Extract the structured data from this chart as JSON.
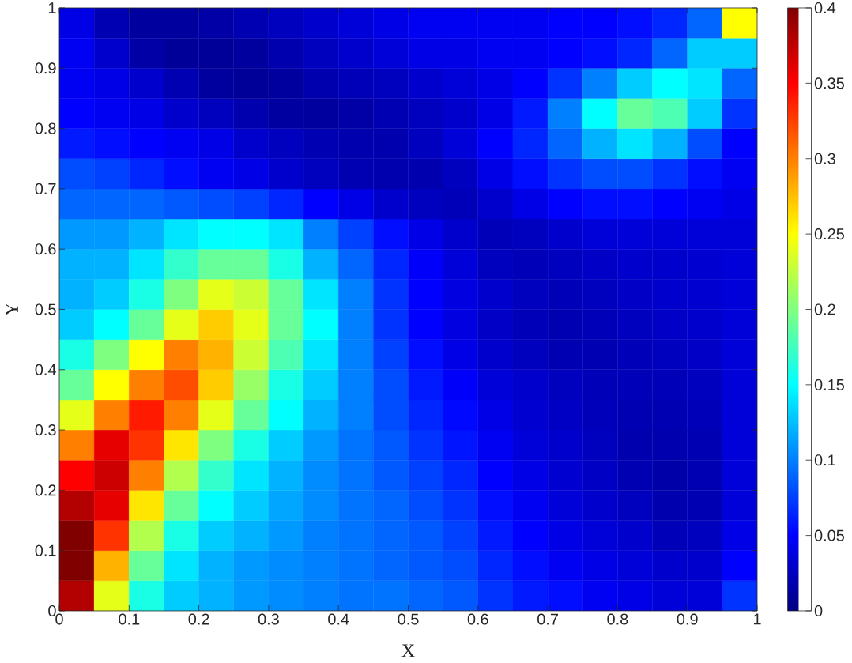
{
  "chart_data": {
    "type": "heatmap",
    "xlabel": "X",
    "ylabel": "Y",
    "cells": [
      [
        0.04,
        0.02,
        0.012,
        0.012,
        0.015,
        0.02,
        0.025,
        0.03,
        0.035,
        0.04,
        0.045,
        0.045,
        0.045,
        0.045,
        0.05,
        0.05,
        0.055,
        0.065,
        0.09,
        0.25
      ],
      [
        0.045,
        0.03,
        0.015,
        0.01,
        0.01,
        0.012,
        0.018,
        0.025,
        0.03,
        0.035,
        0.04,
        0.04,
        0.045,
        0.045,
        0.05,
        0.055,
        0.065,
        0.09,
        0.13,
        0.13
      ],
      [
        0.045,
        0.04,
        0.03,
        0.02,
        0.012,
        0.01,
        0.012,
        0.018,
        0.022,
        0.025,
        0.03,
        0.035,
        0.04,
        0.05,
        0.07,
        0.1,
        0.13,
        0.15,
        0.14,
        0.09
      ],
      [
        0.05,
        0.045,
        0.04,
        0.03,
        0.025,
        0.018,
        0.013,
        0.012,
        0.015,
        0.02,
        0.025,
        0.03,
        0.04,
        0.06,
        0.1,
        0.15,
        0.19,
        0.18,
        0.13,
        0.07
      ],
      [
        0.06,
        0.055,
        0.05,
        0.045,
        0.04,
        0.03,
        0.025,
        0.02,
        0.018,
        0.018,
        0.025,
        0.035,
        0.05,
        0.065,
        0.09,
        0.12,
        0.14,
        0.12,
        0.08,
        0.05
      ],
      [
        0.08,
        0.075,
        0.065,
        0.055,
        0.045,
        0.04,
        0.03,
        0.025,
        0.02,
        0.018,
        0.018,
        0.025,
        0.04,
        0.055,
        0.07,
        0.08,
        0.08,
        0.07,
        0.055,
        0.045
      ],
      [
        0.09,
        0.09,
        0.09,
        0.085,
        0.08,
        0.075,
        0.065,
        0.05,
        0.04,
        0.03,
        0.025,
        0.022,
        0.03,
        0.04,
        0.05,
        0.055,
        0.055,
        0.05,
        0.045,
        0.04
      ],
      [
        0.11,
        0.11,
        0.12,
        0.14,
        0.15,
        0.15,
        0.14,
        0.1,
        0.075,
        0.055,
        0.04,
        0.03,
        0.022,
        0.025,
        0.03,
        0.035,
        0.035,
        0.035,
        0.035,
        0.035
      ],
      [
        0.12,
        0.12,
        0.14,
        0.17,
        0.19,
        0.19,
        0.16,
        0.12,
        0.09,
        0.065,
        0.048,
        0.035,
        0.025,
        0.022,
        0.025,
        0.028,
        0.03,
        0.03,
        0.032,
        0.035
      ],
      [
        0.12,
        0.13,
        0.16,
        0.2,
        0.24,
        0.23,
        0.19,
        0.14,
        0.1,
        0.07,
        0.05,
        0.038,
        0.03,
        0.025,
        0.022,
        0.025,
        0.028,
        0.03,
        0.032,
        0.035
      ],
      [
        0.13,
        0.15,
        0.19,
        0.24,
        0.27,
        0.24,
        0.19,
        0.15,
        0.1,
        0.07,
        0.05,
        0.038,
        0.028,
        0.022,
        0.02,
        0.022,
        0.025,
        0.028,
        0.03,
        0.035
      ],
      [
        0.16,
        0.2,
        0.25,
        0.3,
        0.28,
        0.23,
        0.18,
        0.14,
        0.1,
        0.075,
        0.055,
        0.04,
        0.03,
        0.025,
        0.02,
        0.02,
        0.022,
        0.025,
        0.028,
        0.035
      ],
      [
        0.19,
        0.25,
        0.3,
        0.32,
        0.27,
        0.21,
        0.16,
        0.13,
        0.1,
        0.08,
        0.06,
        0.048,
        0.035,
        0.03,
        0.025,
        0.022,
        0.022,
        0.022,
        0.025,
        0.035
      ],
      [
        0.24,
        0.3,
        0.34,
        0.3,
        0.24,
        0.19,
        0.15,
        0.12,
        0.1,
        0.08,
        0.065,
        0.053,
        0.04,
        0.032,
        0.027,
        0.023,
        0.02,
        0.02,
        0.022,
        0.035
      ],
      [
        0.3,
        0.36,
        0.33,
        0.26,
        0.2,
        0.16,
        0.13,
        0.11,
        0.095,
        0.085,
        0.07,
        0.058,
        0.045,
        0.035,
        0.03,
        0.025,
        0.018,
        0.018,
        0.02,
        0.035
      ],
      [
        0.35,
        0.37,
        0.3,
        0.22,
        0.17,
        0.14,
        0.12,
        0.105,
        0.095,
        0.085,
        0.075,
        0.065,
        0.05,
        0.04,
        0.032,
        0.027,
        0.02,
        0.016,
        0.02,
        0.035
      ],
      [
        0.38,
        0.36,
        0.26,
        0.19,
        0.15,
        0.13,
        0.115,
        0.105,
        0.095,
        0.09,
        0.08,
        0.07,
        0.055,
        0.045,
        0.035,
        0.03,
        0.025,
        0.018,
        0.02,
        0.035
      ],
      [
        0.4,
        0.33,
        0.22,
        0.16,
        0.13,
        0.12,
        0.11,
        0.1,
        0.095,
        0.09,
        0.085,
        0.075,
        0.06,
        0.05,
        0.04,
        0.035,
        0.03,
        0.022,
        0.025,
        0.04
      ],
      [
        0.4,
        0.28,
        0.19,
        0.14,
        0.12,
        0.11,
        0.105,
        0.1,
        0.095,
        0.09,
        0.085,
        0.08,
        0.065,
        0.055,
        0.045,
        0.04,
        0.035,
        0.03,
        0.03,
        0.05
      ],
      [
        0.38,
        0.24,
        0.16,
        0.13,
        0.12,
        0.11,
        0.105,
        0.1,
        0.095,
        0.095,
        0.09,
        0.085,
        0.07,
        0.06,
        0.055,
        0.045,
        0.04,
        0.035,
        0.035,
        0.07
      ]
    ],
    "xlim": [
      0,
      1
    ],
    "ylim": [
      0,
      1
    ],
    "xticks": [
      0,
      0.1,
      0.2,
      0.3,
      0.4,
      0.5,
      0.6,
      0.7,
      0.8,
      0.9,
      1
    ],
    "yticks": [
      0,
      0.1,
      0.2,
      0.3,
      0.4,
      0.5,
      0.6,
      0.7,
      0.8,
      0.9,
      1
    ],
    "clim": [
      0,
      0.4
    ],
    "cticks": [
      0,
      0.05,
      0.1,
      0.15,
      0.2,
      0.25,
      0.3,
      0.35,
      0.4
    ]
  }
}
